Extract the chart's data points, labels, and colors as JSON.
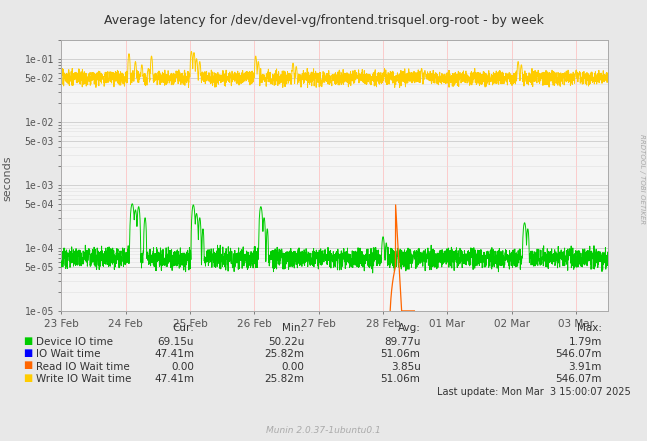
{
  "title": "Average latency for /dev/devel-vg/frontend.trisquel.org-root - by week",
  "ylabel": "seconds",
  "right_label": "RRDTOOL / TOBI OETIKER",
  "bg_color": "#e8e8e8",
  "plot_bg_color": "#f5f5f5",
  "grid_color": "#cccccc",
  "border_color": "#aaaaaa",
  "ylim_min": 1e-05,
  "ylim_max": 0.2,
  "x_tick_labels": [
    "23 Feb",
    "24 Feb",
    "25 Feb",
    "26 Feb",
    "27 Feb",
    "28 Feb",
    "01 Mar",
    "02 Mar",
    "03 Mar"
  ],
  "legend": [
    {
      "label": "Device IO time",
      "color": "#00cc00"
    },
    {
      "label": "IO Wait time",
      "color": "#0000ff"
    },
    {
      "label": "Read IO Wait time",
      "color": "#ff6600"
    },
    {
      "label": "Write IO Wait time",
      "color": "#ffcc00"
    }
  ],
  "cur_values": [
    "69.15u",
    "47.41m",
    "0.00",
    "47.41m"
  ],
  "min_values": [
    "50.22u",
    "25.82m",
    "0.00",
    "25.82m"
  ],
  "avg_values": [
    "89.77u",
    "51.06m",
    "3.85u",
    "51.06m"
  ],
  "max_values": [
    "1.79m",
    "546.07m",
    "3.91m",
    "546.07m"
  ],
  "footer": "Munin 2.0.37-1ubuntu0.1",
  "last_update": "Last update: Mon Mar  3 15:00:07 2025"
}
